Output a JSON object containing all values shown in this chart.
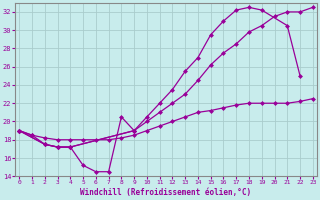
{
  "xlabel": "Windchill (Refroidissement éolien,°C)",
  "bg_color": "#c8ecec",
  "grid_color": "#b0d8d8",
  "line_color": "#990099",
  "ylim": [
    14,
    33
  ],
  "yticks": [
    14,
    16,
    18,
    20,
    22,
    24,
    26,
    28,
    30,
    32
  ],
  "xticks": [
    0,
    1,
    2,
    3,
    4,
    5,
    6,
    7,
    8,
    9,
    10,
    11,
    12,
    13,
    14,
    15,
    16,
    17,
    18,
    19,
    20,
    21,
    22,
    23
  ],
  "curve_dip_x": [
    0,
    1,
    2,
    3,
    4,
    5,
    6,
    7,
    8,
    9
  ],
  "curve_dip_y": [
    19,
    18.5,
    17.5,
    17.2,
    17.2,
    15.2,
    14.5,
    14.5,
    20.5,
    19
  ],
  "curve_upper_x": [
    0,
    2,
    3,
    4,
    9,
    10,
    11,
    12,
    13,
    14,
    15,
    16,
    17,
    18,
    19,
    21,
    22
  ],
  "curve_upper_y": [
    19,
    17.5,
    17.2,
    17.2,
    19,
    20.5,
    22,
    23.5,
    25.5,
    27,
    29.5,
    31,
    32.2,
    32.5,
    32.2,
    30.5,
    25
  ],
  "curve_mid_x": [
    0,
    2,
    3,
    4,
    9,
    10,
    11,
    12,
    13,
    14,
    15,
    16,
    17,
    18,
    19,
    20,
    21,
    22,
    23
  ],
  "curve_mid_y": [
    19,
    17.5,
    17.2,
    17.2,
    19,
    20,
    21,
    22,
    23,
    24.5,
    26.2,
    27.5,
    28.5,
    29.8,
    30.5,
    31.5,
    32,
    32,
    32.5
  ],
  "curve_flat_x": [
    0,
    1,
    2,
    3,
    4,
    5,
    6,
    7,
    8,
    9,
    10,
    11,
    12,
    13,
    14,
    15,
    16,
    17,
    18,
    19,
    20,
    21,
    22,
    23
  ],
  "curve_flat_y": [
    19,
    18.5,
    18.2,
    18,
    18,
    18,
    18,
    18,
    18.2,
    18.5,
    19,
    19.5,
    20,
    20.5,
    21,
    21.2,
    21.5,
    21.8,
    22,
    22,
    22,
    22,
    22.2,
    22.5
  ]
}
